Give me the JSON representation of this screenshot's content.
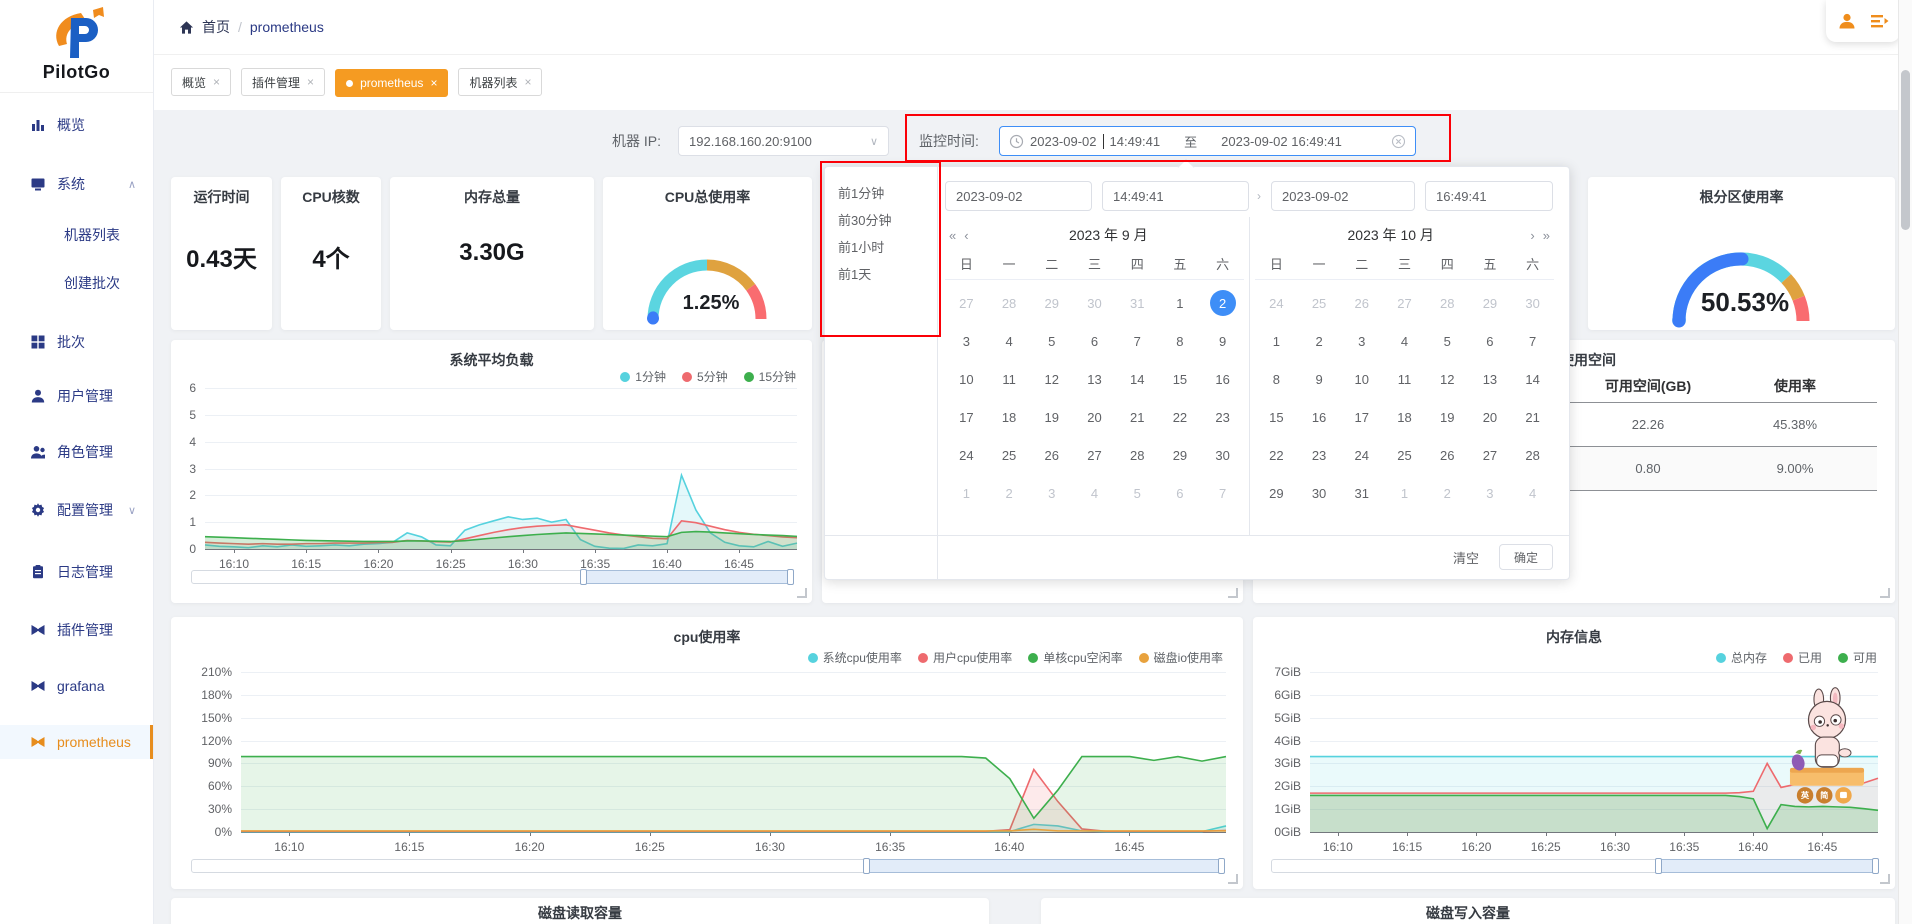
{
  "colors": {
    "accent_orange": "#f59b22",
    "navy": "#2b3a85",
    "link_blue": "#3e8ef7",
    "red_annotation": "#fb0007",
    "page_bg": "#f0f2f5"
  },
  "sidebar": {
    "logo": "PilotGo",
    "items": [
      {
        "label": "概览",
        "icon": "chart-bars-icon"
      },
      {
        "label": "系统",
        "icon": "monitor-icon",
        "expanded": true
      },
      {
        "label": "机器列表",
        "sub": true
      },
      {
        "label": "创建批次",
        "sub": true
      },
      {
        "label": "批次",
        "icon": "grid-icon"
      },
      {
        "label": "用户管理",
        "icon": "user-icon"
      },
      {
        "label": "角色管理",
        "icon": "role-icon"
      },
      {
        "label": "配置管理",
        "icon": "gear-icon",
        "collapsed": true
      },
      {
        "label": "日志管理",
        "icon": "clipboard-icon"
      },
      {
        "label": "插件管理",
        "icon": "plugin-icon"
      },
      {
        "label": "grafana",
        "icon": "plugin-icon"
      },
      {
        "label": "prometheus",
        "icon": "plugin-icon",
        "active": true
      }
    ]
  },
  "header": {
    "breadcrumb": {
      "home": "首页",
      "separator": "/",
      "current": "prometheus"
    },
    "tabs": [
      {
        "label": "概览",
        "close": "×"
      },
      {
        "label": "插件管理",
        "close": "×"
      },
      {
        "label": "prometheus",
        "close": "×",
        "active": true
      },
      {
        "label": "机器列表",
        "close": "×"
      }
    ]
  },
  "toolbar": {
    "machine_ip_label": "机器 IP:",
    "machine_ip_value": "192.168.160.20:9100",
    "time_label": "监控时间:",
    "start_date": "2023-09-02",
    "start_time": "14:49:41",
    "range_separator": "至",
    "end_datetime": "2023-09-02 16:49:41"
  },
  "stats": [
    {
      "title": "运行时间",
      "value": "0.43天"
    },
    {
      "title": "CPU核数",
      "value": "4个"
    },
    {
      "title": "内存总量",
      "value": "3.30G"
    }
  ],
  "datepicker": {
    "shortcuts": [
      "前1分钟",
      "前30分钟",
      "前1小时",
      "前1天"
    ],
    "start_date": "2023-09-02",
    "start_time": "14:49:41",
    "end_date": "2023-09-02",
    "end_time": "16:49:41",
    "prev_year": "«",
    "prev_month": "‹",
    "next_month": "›",
    "next_year": "»",
    "input_separator": "›",
    "weekdays": [
      "日",
      "一",
      "二",
      "三",
      "四",
      "五",
      "六"
    ],
    "calendars": [
      {
        "title": "2023 年 9 月",
        "days": [
          "27m",
          "28m",
          "29m",
          "30m",
          "31m",
          "1",
          "2s",
          "3",
          "4",
          "5",
          "6",
          "7",
          "8",
          "9",
          "10",
          "11",
          "12",
          "13",
          "14",
          "15",
          "16",
          "17",
          "18",
          "19",
          "20",
          "21",
          "22",
          "23",
          "24",
          "25",
          "26",
          "27",
          "28",
          "29",
          "30",
          "1m",
          "2m",
          "3m",
          "4m",
          "5m",
          "6m",
          "7m"
        ]
      },
      {
        "title": "2023 年 10 月",
        "days": [
          "24m",
          "25m",
          "26m",
          "27m",
          "28m",
          "29m",
          "30m",
          "1",
          "2",
          "3",
          "4",
          "5",
          "6",
          "7",
          "8",
          "9",
          "10",
          "11",
          "12",
          "13",
          "14",
          "15",
          "16",
          "17",
          "18",
          "19",
          "20",
          "21",
          "22",
          "23",
          "24",
          "25",
          "26",
          "27",
          "28",
          "29",
          "30",
          "31",
          "1m",
          "2m",
          "3m",
          "4m"
        ]
      }
    ],
    "clear_label": "清空",
    "confirm_label": "确定"
  },
  "mascot": {
    "badges": [
      "英",
      "简"
    ]
  },
  "bottom_cards": [
    {
      "title": "磁盘读取容量"
    },
    {
      "title": "磁盘写入容量"
    }
  ],
  "chart_data": [
    {
      "type": "line",
      "id": "load",
      "title": "系统平均负载",
      "legend_position": "top-right",
      "grid": true,
      "xticks": [
        {
          "label": "16:10",
          "pos": 0.049
        },
        {
          "label": "16:15",
          "pos": 0.171
        },
        {
          "label": "16:20",
          "pos": 0.293
        },
        {
          "label": "16:25",
          "pos": 0.415
        },
        {
          "label": "16:30",
          "pos": 0.537
        },
        {
          "label": "16:35",
          "pos": 0.659
        },
        {
          "label": "16:40",
          "pos": 0.78
        },
        {
          "label": "16:45",
          "pos": 0.902
        }
      ],
      "ylim": [
        0,
        6
      ],
      "yticks": [
        "6",
        "5",
        "4",
        "3",
        "2",
        "1",
        "0"
      ],
      "series": [
        {
          "name": "1分钟",
          "color": "#56d2de",
          "fill": "rgba(86,210,222,0.16)",
          "values": [
            0.15,
            0.1,
            0.08,
            0.05,
            0.12,
            0.08,
            0.15,
            0.1,
            0.12,
            0.15,
            0.12,
            0.18,
            0.2,
            0.25,
            0.6,
            0.45,
            0.15,
            0.12,
            0.7,
            0.9,
            1.05,
            1.2,
            1.1,
            1.15,
            1.0,
            1.1,
            0.35,
            0.1,
            0.03,
            0.02,
            0.15,
            0.12,
            0.2,
            2.75,
            1.45,
            0.6,
            0.25,
            0.12,
            0.08,
            0.28,
            0.1,
            0.22
          ]
        },
        {
          "name": "5分钟",
          "color": "#ee6a6e",
          "fill": "rgba(238,106,110,0.10)",
          "values": [
            0.25,
            0.22,
            0.2,
            0.18,
            0.2,
            0.18,
            0.18,
            0.2,
            0.2,
            0.22,
            0.22,
            0.22,
            0.24,
            0.25,
            0.32,
            0.3,
            0.27,
            0.26,
            0.38,
            0.5,
            0.62,
            0.72,
            0.8,
            0.85,
            0.88,
            0.9,
            0.8,
            0.7,
            0.6,
            0.52,
            0.46,
            0.4,
            0.38,
            1.05,
            0.98,
            0.85,
            0.72,
            0.62,
            0.55,
            0.5,
            0.45,
            0.42
          ]
        },
        {
          "name": "15分钟",
          "color": "#3daf4d",
          "fill": "rgba(61,175,77,0.22)",
          "values": [
            0.46,
            0.44,
            0.42,
            0.4,
            0.38,
            0.36,
            0.34,
            0.32,
            0.31,
            0.3,
            0.29,
            0.28,
            0.28,
            0.28,
            0.3,
            0.3,
            0.29,
            0.28,
            0.31,
            0.36,
            0.41,
            0.46,
            0.5,
            0.54,
            0.57,
            0.6,
            0.58,
            0.56,
            0.54,
            0.52,
            0.5,
            0.48,
            0.46,
            0.62,
            0.65,
            0.63,
            0.6,
            0.57,
            0.54,
            0.52,
            0.5,
            0.47
          ]
        }
      ],
      "slider": {
        "from": 0.655,
        "to": 1.0
      }
    },
    {
      "type": "line",
      "id": "cpu",
      "title": "cpu使用率",
      "legend_position": "top-right",
      "grid": true,
      "xticks": [
        {
          "label": "16:10",
          "pos": 0.049
        },
        {
          "label": "16:15",
          "pos": 0.171
        },
        {
          "label": "16:20",
          "pos": 0.293
        },
        {
          "label": "16:25",
          "pos": 0.415
        },
        {
          "label": "16:30",
          "pos": 0.537
        },
        {
          "label": "16:35",
          "pos": 0.659
        },
        {
          "label": "16:40",
          "pos": 0.78
        },
        {
          "label": "16:45",
          "pos": 0.902
        }
      ],
      "ylim": [
        0,
        210
      ],
      "yticks": [
        "210%",
        "180%",
        "150%",
        "120%",
        "90%",
        "60%",
        "30%",
        "0%"
      ],
      "series": [
        {
          "name": "系统cpu使用率",
          "color": "#56d2de",
          "fill": "rgba(86,210,222,0.18)",
          "values": [
            [
              0.5,
              33
            ],
            10,
            8,
            1.5,
            [
              0.5,
              5
            ],
            8
          ]
        },
        {
          "name": "用户cpu使用率",
          "color": "#ee6a6e",
          "fill": "rgba(238,106,110,0.14)",
          "values": [
            [
              1,
              32
            ],
            3,
            82,
            40,
            4,
            [
              1,
              5
            ],
            2
          ]
        },
        {
          "name": "单核cpu空闲率",
          "color": "#3daf4d",
          "fill": "rgba(61,175,77,0.13)",
          "values": [
            [
              99,
              31
            ],
            97,
            70,
            18,
            55,
            99,
            99,
            99,
            94,
            99,
            93,
            99
          ]
        },
        {
          "name": "磁盘io使用率",
          "color": "#e8a23d",
          "fill": "rgba(232,162,61,0.10)",
          "values": [
            [
              1.5,
              33
            ],
            3.5,
            [
              1.5,
              8
            ]
          ]
        }
      ],
      "slider": {
        "from": 0.655,
        "to": 1.0
      }
    },
    {
      "type": "line",
      "id": "memory",
      "title": "内存信息",
      "legend_position": "top-right",
      "grid": true,
      "xticks": [
        {
          "label": "16:10",
          "pos": 0.049
        },
        {
          "label": "16:15",
          "pos": 0.171
        },
        {
          "label": "16:20",
          "pos": 0.293
        },
        {
          "label": "16:25",
          "pos": 0.415
        },
        {
          "label": "16:30",
          "pos": 0.537
        },
        {
          "label": "16:35",
          "pos": 0.659
        },
        {
          "label": "16:40",
          "pos": 0.78
        },
        {
          "label": "16:45",
          "pos": 0.902
        }
      ],
      "ylim": [
        0,
        7
      ],
      "yticks": [
        "7GiB",
        "6GiB",
        "5GiB",
        "4GiB",
        "3GiB",
        "2GiB",
        "1GiB",
        "0GiB"
      ],
      "series": [
        {
          "name": "总内存",
          "color": "#56d2de",
          "fill": "rgba(86,210,222,0.12)",
          "values": [
            [
              3.3,
              42
            ]
          ]
        },
        {
          "name": "已用",
          "color": "#ee6a6e",
          "fill": "rgba(238,106,110,0.10)",
          "values": [
            [
              1.7,
              31
            ],
            1.72,
            1.78,
            3.0,
            1.95,
            2.08,
            2.1,
            2.08,
            2.1,
            2.1,
            2.15,
            2.35
          ]
        },
        {
          "name": "可用",
          "color": "#3daf4d",
          "fill": "rgba(61,175,77,0.20)",
          "values": [
            [
              1.6,
              31
            ],
            1.55,
            1.45,
            0.15,
            1.2,
            1.12,
            1.1,
            1.12,
            1.1,
            1.08,
            1.02,
            0.95
          ]
        }
      ],
      "slider": {
        "from": 0.64,
        "to": 1.0
      }
    },
    {
      "type": "gauge",
      "id": "cpu-total",
      "title": "CPU总使用率",
      "value": "1.25%",
      "value_num": 1.25,
      "max": 100,
      "progress_color": "#3b7cf7",
      "start_cap_color": "#3b7cf7",
      "segments": [
        {
          "to": 0.5,
          "color": "#5bd5e0"
        },
        {
          "to": 0.8,
          "color": "#dfa23f"
        },
        {
          "to": 1,
          "color": "#f96c70"
        }
      ]
    },
    {
      "type": "gauge",
      "id": "root-partition",
      "title": "根分区使用率",
      "value": "50.53%",
      "value_num": 50.53,
      "max": 100,
      "progress_color": "#3b7cf7",
      "start_cap_color": "#7ac2f8",
      "segments": [
        {
          "to": 0.76,
          "color": "#5bd5e0"
        },
        {
          "to": 0.88,
          "color": "#dfa23f"
        },
        {
          "to": 1,
          "color": "#f96c70"
        }
      ]
    },
    {
      "type": "table",
      "id": "disk-space",
      "title": "磁盘使用空间",
      "columns": [
        "可用空间(GB)",
        "使用率"
      ],
      "rows": [
        [
          "22.26",
          "45.38%"
        ],
        [
          "0.80",
          "9.00%"
        ]
      ]
    }
  ]
}
